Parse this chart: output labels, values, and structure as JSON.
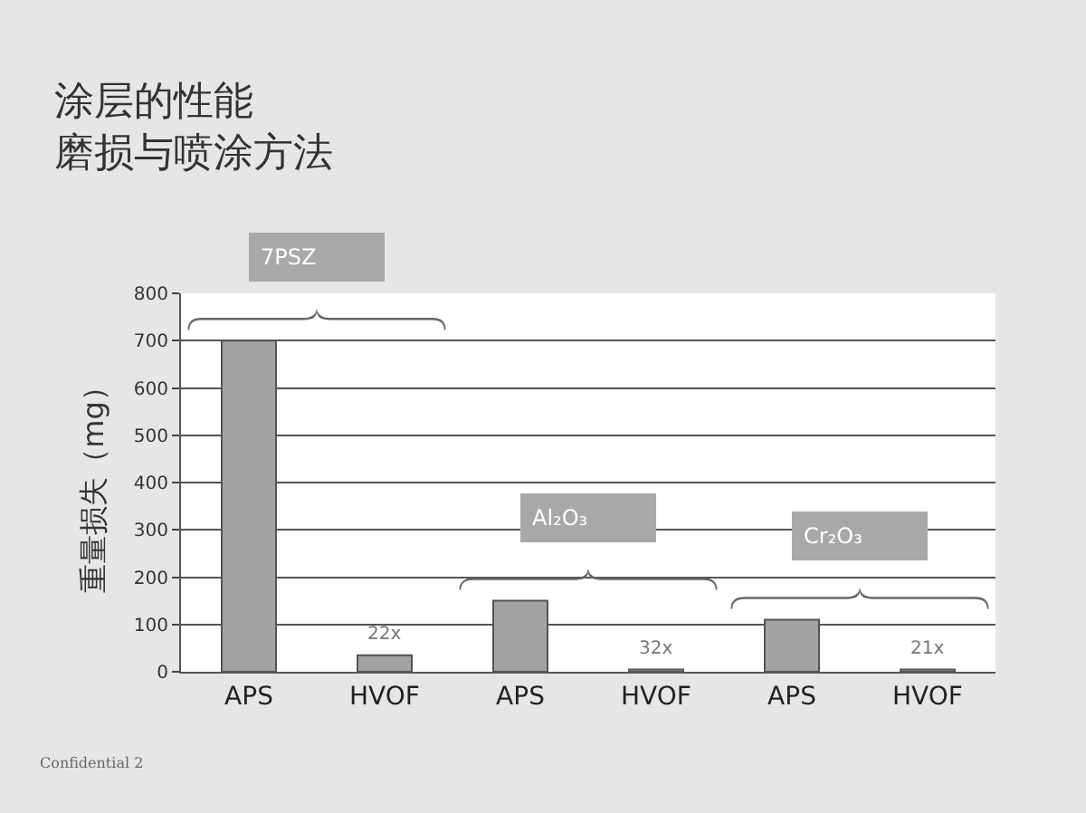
{
  "chart_data": {
    "type": "bar",
    "title": "涂层的性能",
    "subtitle": "磨损与喷涂方法",
    "ylabel": "重量损失（mg）",
    "categories": [
      "APS",
      "HVOF",
      "APS",
      "HVOF",
      "APS",
      "HVOF"
    ],
    "values": [
      700,
      35,
      150,
      5,
      110,
      5
    ],
    "color": "#a3a3a3",
    "ylim": [
      0,
      800
    ],
    "yticks": [
      0,
      100,
      200,
      300,
      400,
      500,
      600,
      700,
      800
    ],
    "grid": "y",
    "annotations": [
      "7PSZ",
      "Al₂O₃",
      "Cr₂O₃",
      "22x",
      "32x",
      "21x",
      "Confidential 2"
    ]
  }
}
